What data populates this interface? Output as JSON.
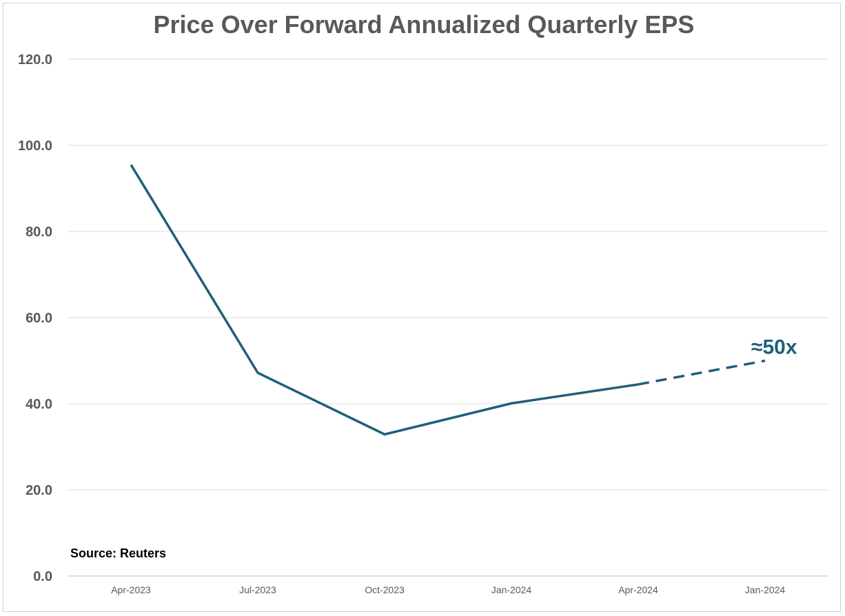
{
  "chart_data": {
    "type": "line",
    "title": "Price Over Forward Annualized Quarterly EPS",
    "categories": [
      "Apr-2023",
      "Jul-2023",
      "Oct-2023",
      "Jan-2024",
      "Apr-2024",
      "Jan-2024"
    ],
    "yticks": [
      "0.0",
      "20.0",
      "40.0",
      "60.0",
      "80.0",
      "100.0",
      "120.0"
    ],
    "ylim": [
      0,
      120
    ],
    "series": [
      {
        "values": [
          95.5,
          47.2,
          32.9,
          40.1,
          44.5,
          null
        ],
        "style": "solid"
      },
      {
        "values": [
          null,
          null,
          null,
          null,
          44.5,
          50.0
        ],
        "style": "dashed"
      }
    ],
    "annotation": {
      "text": "≈50x",
      "category_index": 5,
      "value": 50
    },
    "grid": true,
    "color": "#1f5f7a",
    "source": "Source: Reuters"
  }
}
